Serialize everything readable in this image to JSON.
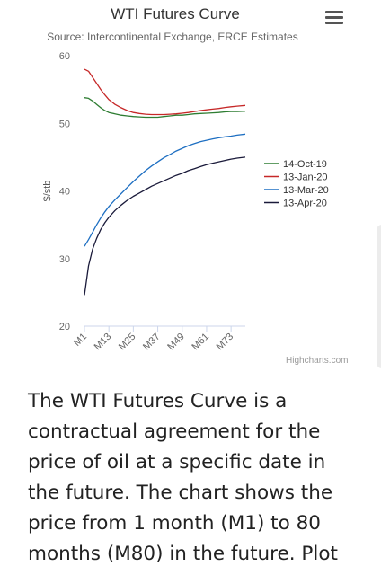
{
  "header": {
    "title": "WTI Futures Curve",
    "subtitle": "Source: Intercontinental Exchange, ERCE Estimates"
  },
  "menu_icon": "hamburger-menu-icon",
  "chart_data": {
    "type": "line",
    "title": "WTI Futures Curve",
    "subtitle": "Source: Intercontinental Exchange, ERCE Estimates",
    "ylabel": "$/stb",
    "xlabel": "",
    "ylim": [
      20,
      60
    ],
    "yticks": [
      20,
      30,
      40,
      50,
      60
    ],
    "xlim": [
      1,
      80
    ],
    "xticks": [
      "M1",
      "M13",
      "M25",
      "M37",
      "M49",
      "M61",
      "M73"
    ],
    "legend_position": "right",
    "grid": false,
    "x": [
      1,
      3,
      5,
      7,
      9,
      11,
      13,
      16,
      19,
      22,
      25,
      28,
      31,
      34,
      37,
      40,
      43,
      46,
      49,
      52,
      55,
      58,
      61,
      64,
      67,
      70,
      73,
      76,
      80
    ],
    "series": [
      {
        "name": "14-Oct-19",
        "color": "#2e7d32",
        "values": [
          53.8,
          53.7,
          53.3,
          52.8,
          52.3,
          51.9,
          51.6,
          51.4,
          51.2,
          51.1,
          51.0,
          50.95,
          50.9,
          50.9,
          50.9,
          51.0,
          51.1,
          51.2,
          51.2,
          51.3,
          51.4,
          51.45,
          51.5,
          51.55,
          51.6,
          51.7,
          51.75,
          51.75,
          51.8
        ]
      },
      {
        "name": "13-Jan-20",
        "color": "#c62828",
        "values": [
          58.0,
          57.7,
          56.8,
          55.9,
          55.0,
          54.2,
          53.5,
          52.8,
          52.3,
          51.9,
          51.6,
          51.45,
          51.35,
          51.3,
          51.3,
          51.3,
          51.35,
          51.4,
          51.5,
          51.6,
          51.75,
          51.9,
          52.0,
          52.1,
          52.2,
          52.35,
          52.45,
          52.55,
          52.65
        ]
      },
      {
        "name": "13-Mar-20",
        "color": "#1e6fc2",
        "values": [
          31.8,
          32.8,
          33.9,
          35.0,
          36.0,
          36.9,
          37.7,
          38.7,
          39.6,
          40.5,
          41.4,
          42.2,
          43.0,
          43.7,
          44.3,
          44.9,
          45.4,
          45.9,
          46.3,
          46.7,
          47.0,
          47.3,
          47.5,
          47.7,
          47.85,
          48.0,
          48.1,
          48.25,
          48.4
        ]
      },
      {
        "name": "13-Apr-20",
        "color": "#1a1a3a",
        "values": [
          24.6,
          28.9,
          31.4,
          33.0,
          34.3,
          35.3,
          36.1,
          37.1,
          37.9,
          38.6,
          39.2,
          39.7,
          40.2,
          40.7,
          41.1,
          41.5,
          41.9,
          42.3,
          42.6,
          43.0,
          43.3,
          43.6,
          43.9,
          44.1,
          44.3,
          44.5,
          44.7,
          44.85,
          45.0
        ]
      }
    ]
  },
  "credits": "Highcharts.com",
  "article": {
    "text": "The WTI Futures Curve is a contractual agreement for the price of oil at a specific date in the future. The chart shows the price from 1 month (M1) to 80 months (M80) in the future. Plot"
  }
}
